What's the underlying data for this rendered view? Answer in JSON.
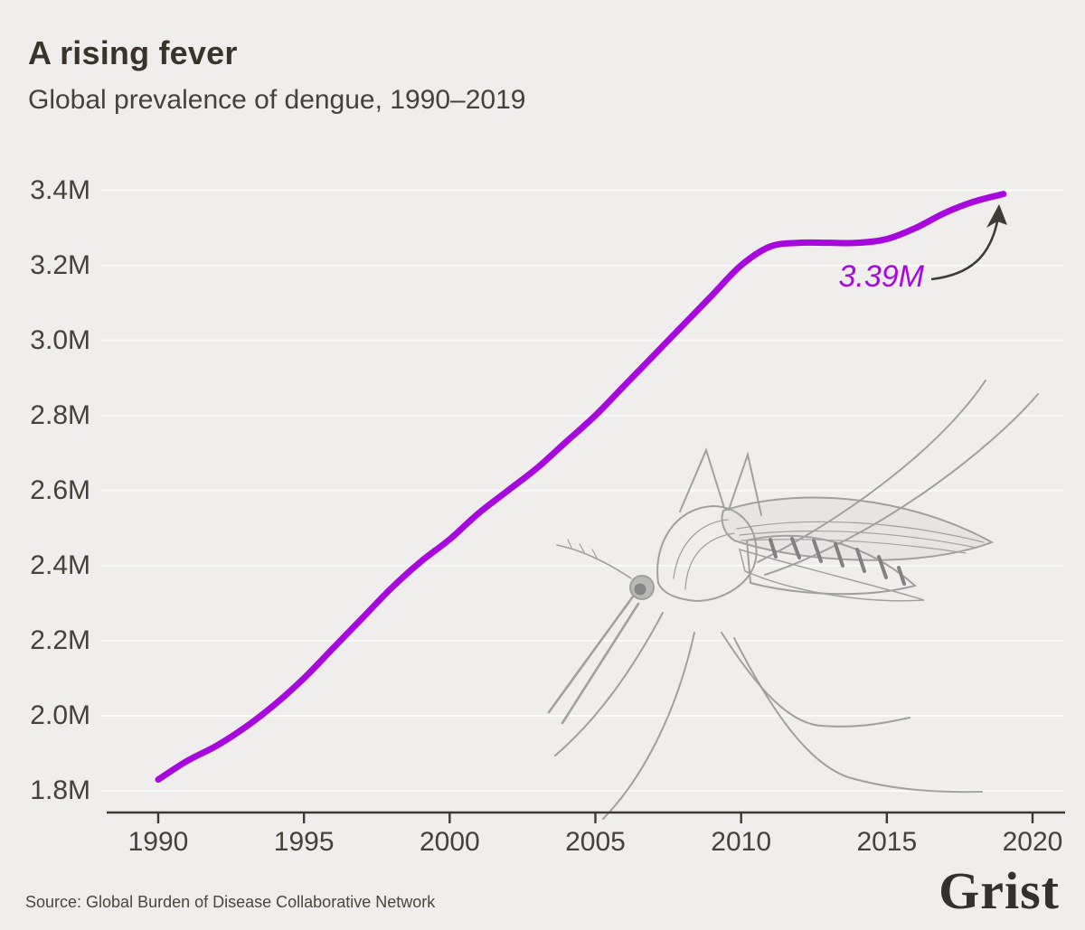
{
  "header": {
    "title": "A rising fever",
    "subtitle": "Global prevalence of dengue, 1990–2019"
  },
  "chart_data": {
    "type": "line",
    "title": "A rising fever",
    "subtitle": "Global prevalence of dengue, 1990–2019",
    "xlabel": "",
    "ylabel": "",
    "x": [
      1990,
      1991,
      1992,
      1993,
      1994,
      1995,
      1996,
      1997,
      1998,
      1999,
      2000,
      2001,
      2002,
      2003,
      2004,
      2005,
      2006,
      2007,
      2008,
      2009,
      2010,
      2011,
      2012,
      2013,
      2014,
      2015,
      2016,
      2017,
      2018,
      2019
    ],
    "series": [
      {
        "name": "Global prevalence of dengue (millions)",
        "color": "#a708dd",
        "values": [
          1.83,
          1.88,
          1.92,
          1.97,
          2.03,
          2.1,
          2.18,
          2.26,
          2.34,
          2.41,
          2.47,
          2.54,
          2.6,
          2.66,
          2.73,
          2.8,
          2.88,
          2.96,
          3.04,
          3.12,
          3.2,
          3.25,
          3.26,
          3.26,
          3.26,
          3.27,
          3.3,
          3.34,
          3.37,
          3.39
        ]
      }
    ],
    "xlim": [
      1988.5,
      2021
    ],
    "ylim": [
      1.8,
      3.4
    ],
    "xticks": [
      1990,
      1995,
      2000,
      2005,
      2010,
      2015,
      2020
    ],
    "yticks": [
      1.8,
      2.0,
      2.2,
      2.4,
      2.6,
      2.8,
      3.0,
      3.2,
      3.4
    ],
    "ytick_suffix": "M",
    "grid": "horizontal",
    "legend": "none",
    "annotation": {
      "label": "3.39M",
      "year": 2019,
      "value": 3.39
    }
  },
  "footer": {
    "source": "Source: Global Burden of Disease Collaborative Network",
    "logo": "Grist"
  },
  "colors": {
    "background": "#efeeec",
    "gridline": "#fafaf8",
    "axis": "#3e3933",
    "series": "#a708dd",
    "annotation_arrow": "#3f3b36",
    "mosquito": "#909090",
    "text": "#46413a"
  }
}
